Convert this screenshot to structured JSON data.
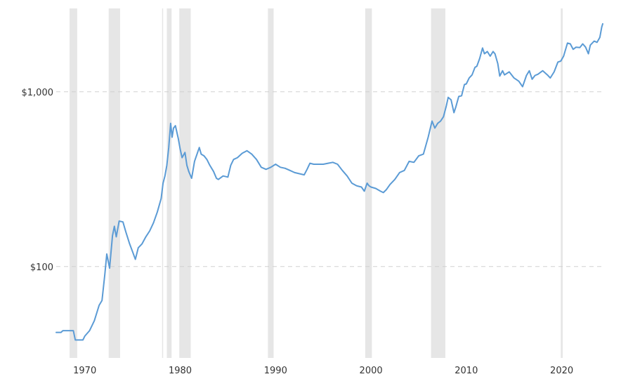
{
  "chart_data": {
    "type": "line",
    "title": "",
    "xlabel": "",
    "ylabel": "",
    "y_scale": "log",
    "xlim": [
      1967,
      2024.3
    ],
    "ylim": [
      30,
      3000
    ],
    "grid": "horizontal-dashed",
    "legend": "none",
    "line_color": "#5b9bd5",
    "shade_color": "#e6e6e6",
    "x_ticks": [
      {
        "value": 1970,
        "label": "1970"
      },
      {
        "value": 1980,
        "label": "1980"
      },
      {
        "value": 1990,
        "label": "1990"
      },
      {
        "value": 2000,
        "label": "2000"
      },
      {
        "value": 2010,
        "label": "2010"
      },
      {
        "value": 2020,
        "label": "2020"
      }
    ],
    "y_ticks": [
      {
        "value": 100,
        "label": "$100"
      },
      {
        "value": 1000,
        "label": "$1,000"
      }
    ],
    "shaded_periods": [
      [
        1968.4,
        1969.2
      ],
      [
        1972.5,
        1973.7
      ],
      [
        1978.1,
        1978.2
      ],
      [
        1978.6,
        1979.1
      ],
      [
        1979.9,
        1981.1
      ],
      [
        1989.2,
        1989.8
      ],
      [
        1999.4,
        2000.1
      ],
      [
        2006.3,
        2007.8
      ],
      [
        2019.9,
        2020.1
      ]
    ],
    "series": [
      {
        "values": [
          [
            1967.0,
            42
          ],
          [
            1967.5,
            42
          ],
          [
            1967.7,
            43
          ],
          [
            1968.8,
            43
          ],
          [
            1969.0,
            38
          ],
          [
            1969.8,
            38
          ],
          [
            1970.0,
            40
          ],
          [
            1970.5,
            43
          ],
          [
            1971.0,
            49
          ],
          [
            1971.5,
            60
          ],
          [
            1971.8,
            64
          ],
          [
            1972.1,
            90
          ],
          [
            1972.3,
            118
          ],
          [
            1972.6,
            98
          ],
          [
            1972.9,
            150
          ],
          [
            1973.1,
            170
          ],
          [
            1973.3,
            148
          ],
          [
            1973.6,
            182
          ],
          [
            1974.0,
            180
          ],
          [
            1974.3,
            158
          ],
          [
            1974.7,
            135
          ],
          [
            1975.0,
            122
          ],
          [
            1975.3,
            110
          ],
          [
            1975.6,
            128
          ],
          [
            1976.0,
            135
          ],
          [
            1976.4,
            148
          ],
          [
            1976.8,
            160
          ],
          [
            1977.2,
            178
          ],
          [
            1977.6,
            205
          ],
          [
            1978.0,
            245
          ],
          [
            1978.2,
            300
          ],
          [
            1978.4,
            330
          ],
          [
            1978.6,
            380
          ],
          [
            1978.8,
            480
          ],
          [
            1979.0,
            660
          ],
          [
            1979.15,
            550
          ],
          [
            1979.3,
            620
          ],
          [
            1979.5,
            640
          ],
          [
            1979.8,
            540
          ],
          [
            1980.0,
            470
          ],
          [
            1980.2,
            420
          ],
          [
            1980.5,
            450
          ],
          [
            1980.7,
            380
          ],
          [
            1980.9,
            350
          ],
          [
            1981.2,
            320
          ],
          [
            1981.5,
            400
          ],
          [
            1981.7,
            430
          ],
          [
            1982.0,
            480
          ],
          [
            1982.2,
            440
          ],
          [
            1982.5,
            430
          ],
          [
            1982.8,
            410
          ],
          [
            1983.1,
            380
          ],
          [
            1983.5,
            350
          ],
          [
            1983.8,
            320
          ],
          [
            1984.0,
            315
          ],
          [
            1984.5,
            330
          ],
          [
            1985.0,
            325
          ],
          [
            1985.3,
            380
          ],
          [
            1985.6,
            410
          ],
          [
            1986.0,
            420
          ],
          [
            1986.5,
            445
          ],
          [
            1987.0,
            460
          ],
          [
            1987.5,
            440
          ],
          [
            1988.0,
            410
          ],
          [
            1988.5,
            370
          ],
          [
            1989.0,
            360
          ],
          [
            1989.5,
            370
          ],
          [
            1990.0,
            385
          ],
          [
            1990.5,
            370
          ],
          [
            1991.0,
            365
          ],
          [
            1991.5,
            355
          ],
          [
            1992.0,
            345
          ],
          [
            1992.5,
            340
          ],
          [
            1993.0,
            335
          ],
          [
            1993.3,
            360
          ],
          [
            1993.6,
            390
          ],
          [
            1994.0,
            385
          ],
          [
            1994.5,
            385
          ],
          [
            1995.0,
            385
          ],
          [
            1995.5,
            390
          ],
          [
            1996.0,
            395
          ],
          [
            1996.5,
            385
          ],
          [
            1997.0,
            355
          ],
          [
            1997.5,
            330
          ],
          [
            1998.0,
            300
          ],
          [
            1998.5,
            290
          ],
          [
            1999.0,
            285
          ],
          [
            1999.3,
            270
          ],
          [
            1999.6,
            300
          ],
          [
            1999.8,
            290
          ],
          [
            2000.0,
            285
          ],
          [
            2000.5,
            280
          ],
          [
            2001.0,
            270
          ],
          [
            2001.3,
            265
          ],
          [
            2001.6,
            275
          ],
          [
            2002.0,
            295
          ],
          [
            2002.5,
            315
          ],
          [
            2003.0,
            345
          ],
          [
            2003.5,
            355
          ],
          [
            2004.0,
            400
          ],
          [
            2004.5,
            395
          ],
          [
            2005.0,
            430
          ],
          [
            2005.5,
            440
          ],
          [
            2006.0,
            550
          ],
          [
            2006.4,
            680
          ],
          [
            2006.7,
            620
          ],
          [
            2007.0,
            660
          ],
          [
            2007.3,
            680
          ],
          [
            2007.6,
            720
          ],
          [
            2007.9,
            830
          ],
          [
            2008.1,
            930
          ],
          [
            2008.4,
            900
          ],
          [
            2008.7,
            760
          ],
          [
            2008.9,
            820
          ],
          [
            2009.2,
            940
          ],
          [
            2009.5,
            950
          ],
          [
            2009.8,
            1100
          ],
          [
            2010.0,
            1110
          ],
          [
            2010.3,
            1200
          ],
          [
            2010.6,
            1250
          ],
          [
            2010.9,
            1380
          ],
          [
            2011.1,
            1400
          ],
          [
            2011.4,
            1550
          ],
          [
            2011.7,
            1780
          ],
          [
            2011.9,
            1650
          ],
          [
            2012.2,
            1700
          ],
          [
            2012.5,
            1600
          ],
          [
            2012.8,
            1700
          ],
          [
            2013.0,
            1650
          ],
          [
            2013.3,
            1450
          ],
          [
            2013.5,
            1230
          ],
          [
            2013.8,
            1320
          ],
          [
            2014.0,
            1250
          ],
          [
            2014.5,
            1300
          ],
          [
            2015.0,
            1200
          ],
          [
            2015.5,
            1150
          ],
          [
            2015.9,
            1070
          ],
          [
            2016.3,
            1240
          ],
          [
            2016.6,
            1320
          ],
          [
            2016.9,
            1180
          ],
          [
            2017.2,
            1240
          ],
          [
            2017.5,
            1260
          ],
          [
            2018.0,
            1320
          ],
          [
            2018.5,
            1250
          ],
          [
            2018.8,
            1200
          ],
          [
            2019.2,
            1300
          ],
          [
            2019.6,
            1480
          ],
          [
            2019.9,
            1500
          ],
          [
            2020.2,
            1600
          ],
          [
            2020.6,
            1900
          ],
          [
            2020.9,
            1880
          ],
          [
            2021.2,
            1750
          ],
          [
            2021.5,
            1800
          ],
          [
            2021.9,
            1790
          ],
          [
            2022.2,
            1880
          ],
          [
            2022.5,
            1800
          ],
          [
            2022.8,
            1650
          ],
          [
            2023.0,
            1850
          ],
          [
            2023.4,
            1950
          ],
          [
            2023.7,
            1920
          ],
          [
            2024.0,
            2050
          ],
          [
            2024.2,
            2350
          ],
          [
            2024.3,
            2450
          ]
        ]
      }
    ]
  }
}
